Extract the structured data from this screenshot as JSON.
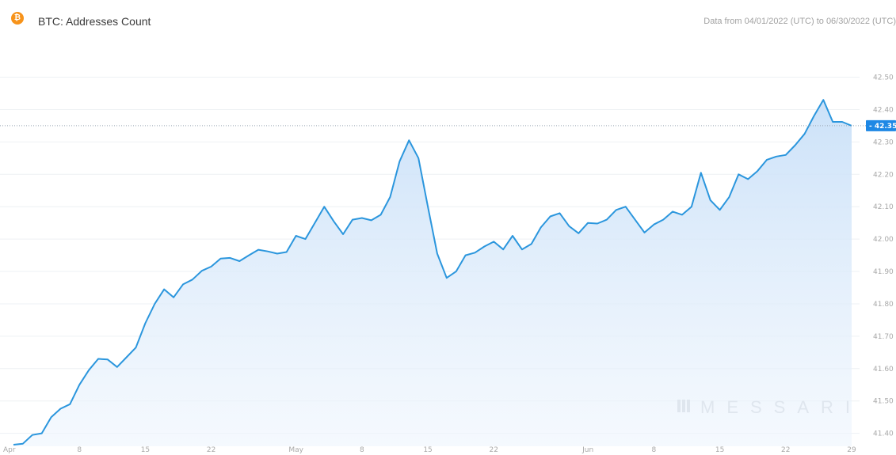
{
  "header": {
    "icon": "bitcoin-icon",
    "title": "BTC: Addresses Count",
    "range_text": "Data from 04/01/2022 (UTC) to 06/30/2022 (UTC)"
  },
  "watermark": "MESSARI",
  "colors": {
    "line": "#2b96dd",
    "fill": "#d6e9fb",
    "tag_bg": "#1e88e5",
    "btc_orange": "#f7931a",
    "grid": "#eef1f4"
  },
  "chart_data": {
    "type": "area",
    "title": "BTC: Addresses Count",
    "xlabel": "",
    "ylabel": "",
    "ylim": [
      41.36,
      42.56
    ],
    "y_ticks": [
      "41.40",
      "41.50",
      "41.60",
      "41.70",
      "41.80",
      "41.90",
      "42.00",
      "42.10",
      "42.20",
      "42.30",
      "42.40",
      "42.50"
    ],
    "x_ticks": [
      {
        "day": 1,
        "label": "Apr"
      },
      {
        "day": 8,
        "label": "8"
      },
      {
        "day": 15,
        "label": "15"
      },
      {
        "day": 22,
        "label": "22"
      },
      {
        "day": 31,
        "label": "May"
      },
      {
        "day": 38,
        "label": "8"
      },
      {
        "day": 45,
        "label": "15"
      },
      {
        "day": 52,
        "label": "22"
      },
      {
        "day": 62,
        "label": "Jun"
      },
      {
        "day": 69,
        "label": "8"
      },
      {
        "day": 76,
        "label": "15"
      },
      {
        "day": 83,
        "label": "22"
      },
      {
        "day": 90,
        "label": "29"
      }
    ],
    "current_value": "42.35",
    "grid": true,
    "series": [
      {
        "values": [
          41.365,
          41.368,
          41.395,
          41.4,
          41.45,
          41.476,
          41.49,
          41.55,
          41.595,
          41.63,
          41.628,
          41.605,
          41.635,
          41.665,
          41.74,
          41.8,
          41.845,
          41.82,
          41.86,
          41.875,
          41.902,
          41.915,
          41.94,
          41.942,
          41.932,
          41.95,
          41.967,
          41.962,
          41.955,
          41.96,
          42.01,
          42.0,
          42.05,
          42.1,
          42.055,
          42.015,
          42.06,
          42.065,
          42.058,
          42.075,
          42.13,
          42.24,
          42.305,
          42.25,
          42.1,
          41.955,
          41.88,
          41.9,
          41.95,
          41.958,
          41.977,
          41.992,
          41.968,
          42.01,
          41.968,
          41.985,
          42.036,
          42.07,
          42.08,
          42.04,
          42.018,
          42.05,
          42.048,
          42.06,
          42.09,
          42.1,
          42.06,
          42.02,
          42.045,
          42.06,
          42.085,
          42.075,
          42.1,
          42.205,
          42.12,
          42.09,
          42.13,
          42.2,
          42.185,
          42.21,
          42.245,
          42.255,
          42.26,
          42.29,
          42.325,
          42.38,
          42.43,
          42.362,
          42.362,
          42.35
        ]
      }
    ]
  }
}
